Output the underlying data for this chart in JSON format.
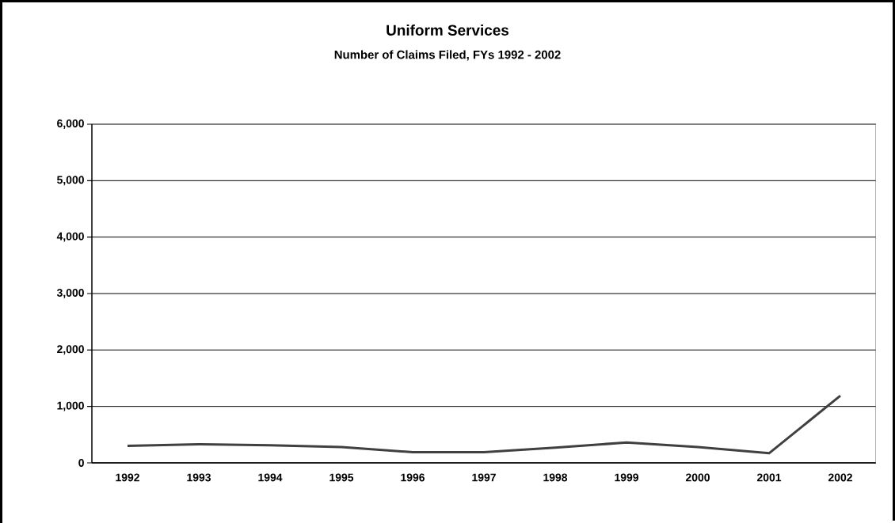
{
  "chart_data": {
    "type": "line",
    "title": "Uniform Services",
    "subtitle": "Number of Claims Filed, FYs 1992 - 2002",
    "categories": [
      "1992",
      "1993",
      "1994",
      "1995",
      "1996",
      "1997",
      "1998",
      "1999",
      "2000",
      "2001",
      "2002"
    ],
    "values": [
      300,
      330,
      310,
      280,
      190,
      190,
      270,
      360,
      280,
      170,
      1190
    ],
    "color": "#404040",
    "ylim": [
      0,
      6000
    ],
    "yticks": [
      {
        "value": 0,
        "label": "0"
      },
      {
        "value": 1000,
        "label": "1,000"
      },
      {
        "value": 2000,
        "label": "2,000"
      },
      {
        "value": 3000,
        "label": "3,000"
      },
      {
        "value": 4000,
        "label": "4,000"
      },
      {
        "value": 5000,
        "label": "5,000"
      },
      {
        "value": 6000,
        "label": "6,000"
      }
    ],
    "grid": "y",
    "marker": "none",
    "line_style": "solid"
  }
}
